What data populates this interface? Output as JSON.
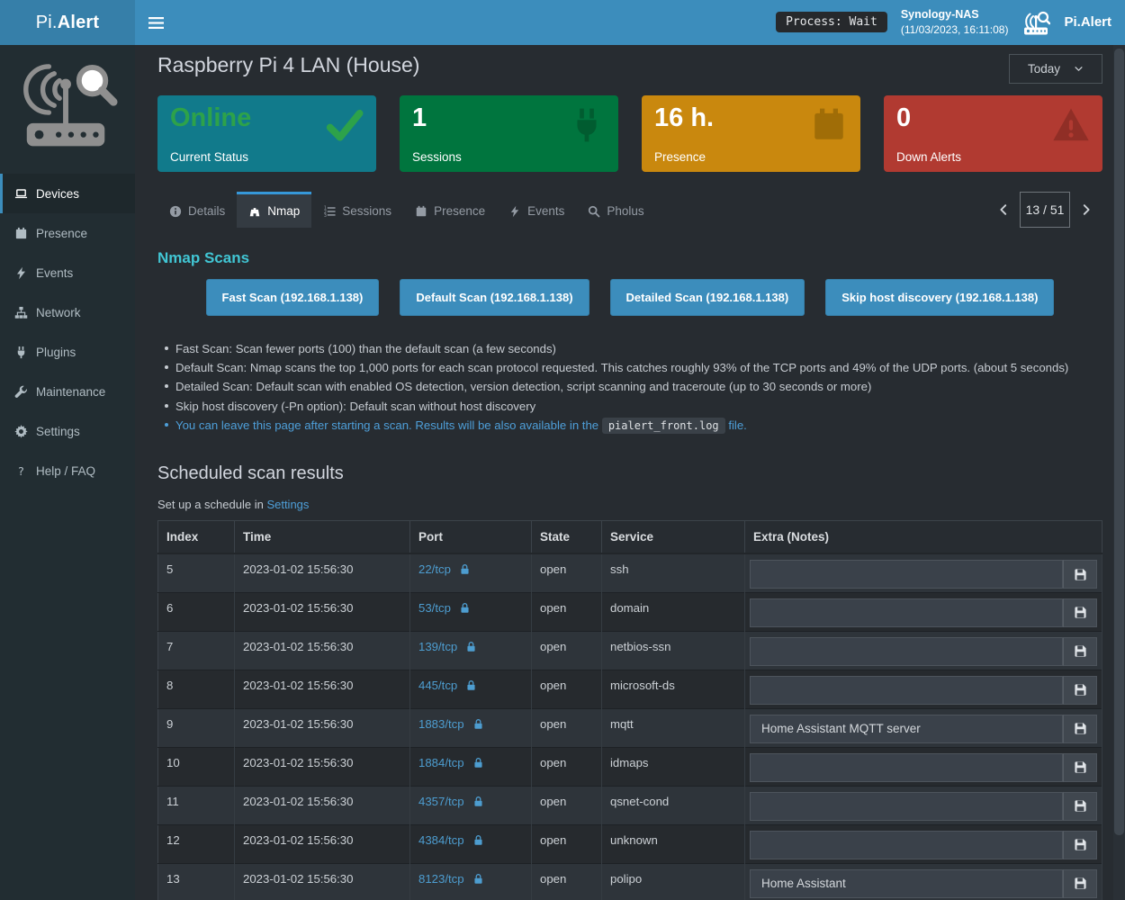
{
  "colors": {
    "navbar": "#3c8dbc",
    "link": "#4e9fd9",
    "port_link": "#4d9dd0",
    "nmap_heading": "#41c6d4"
  },
  "navbar": {
    "brand_prefix": "Pi.",
    "brand_bold": "Alert",
    "process_status": "Process: Wait",
    "host_name": "Synology-NAS",
    "host_timestamp": "(11/03/2023, 16:11:08)",
    "app_name": "Pi.Alert"
  },
  "sidebar": {
    "items": [
      {
        "label": "Devices",
        "icon": "laptop",
        "active": true
      },
      {
        "label": "Presence",
        "icon": "calendar"
      },
      {
        "label": "Events",
        "icon": "bolt"
      },
      {
        "label": "Network",
        "icon": "sitemap"
      },
      {
        "label": "Plugins",
        "icon": "plug"
      },
      {
        "label": "Maintenance",
        "icon": "wrench"
      },
      {
        "label": "Settings",
        "icon": "gear"
      },
      {
        "label": "Help / FAQ",
        "icon": "question"
      }
    ]
  },
  "header": {
    "title": "Raspberry Pi 4 LAN (House)",
    "period": "Today"
  },
  "summary_cards": [
    {
      "value": "Online",
      "label": "Current Status",
      "bg": "#117a8b",
      "value_color": "#2da24a",
      "icon": "check",
      "icon_color": "#2da24a"
    },
    {
      "value": "1",
      "label": "Sessions",
      "bg": "#00753e",
      "value_color": "#ffffff",
      "icon": "plug",
      "icon_color": "#015c30"
    },
    {
      "value": "16 h.",
      "label": "Presence",
      "bg": "#c9880e",
      "value_color": "#ffffff",
      "icon": "calendar",
      "icon_color": "#a06d07"
    },
    {
      "value": "0",
      "label": "Down Alerts",
      "bg": "#b13a31",
      "value_color": "#ffffff",
      "icon": "warning",
      "icon_color": "#902e26"
    }
  ],
  "tabs": [
    {
      "label": "Details",
      "icon": "info-circle"
    },
    {
      "label": "Nmap",
      "icon": "binoculars",
      "active": true
    },
    {
      "label": "Sessions",
      "icon": "list-ol"
    },
    {
      "label": "Presence",
      "icon": "calendar"
    },
    {
      "label": "Events",
      "icon": "bolt"
    },
    {
      "label": "Pholus",
      "icon": "search"
    }
  ],
  "pagination": {
    "position": "13 / 51"
  },
  "nmap": {
    "section_title": "Nmap Scans",
    "scan_buttons": [
      "Fast Scan (192.168.1.138)",
      "Default Scan (192.168.1.138)",
      "Detailed Scan (192.168.1.138)",
      "Skip host discovery (192.168.1.138)"
    ],
    "notes": [
      "Fast Scan: Scan fewer ports (100) than the default scan (a few seconds)",
      "Default Scan: Nmap scans the top 1,000 ports for each scan protocol requested. This catches roughly 93% of the TCP ports and 49% of the UDP ports. (about 5 seconds)",
      "Detailed Scan: Default scan with enabled OS detection, version detection, script scanning and traceroute (up to 30 seconds or more)",
      "Skip host discovery (-Pn option): Default scan without host discovery"
    ],
    "info_note": {
      "before": "You can leave this page after starting a scan. Results will be also available in the",
      "code": "pialert_front.log",
      "after": "file."
    }
  },
  "scheduled": {
    "title": "Scheduled scan results",
    "subtitle_prefix": "Set up a schedule in",
    "subtitle_link": "Settings",
    "table": {
      "headers": [
        "Index",
        "Time",
        "Port",
        "State",
        "Service",
        "Extra (Notes)"
      ],
      "rows": [
        {
          "index": "5",
          "time": "2023-01-02 15:56:30",
          "port": "22/tcp",
          "state": "open",
          "service": "ssh",
          "note": ""
        },
        {
          "index": "6",
          "time": "2023-01-02 15:56:30",
          "port": "53/tcp",
          "state": "open",
          "service": "domain",
          "note": ""
        },
        {
          "index": "7",
          "time": "2023-01-02 15:56:30",
          "port": "139/tcp",
          "state": "open",
          "service": "netbios-ssn",
          "note": ""
        },
        {
          "index": "8",
          "time": "2023-01-02 15:56:30",
          "port": "445/tcp",
          "state": "open",
          "service": "microsoft-ds",
          "note": ""
        },
        {
          "index": "9",
          "time": "2023-01-02 15:56:30",
          "port": "1883/tcp",
          "state": "open",
          "service": "mqtt",
          "note": "Home Assistant MQTT server"
        },
        {
          "index": "10",
          "time": "2023-01-02 15:56:30",
          "port": "1884/tcp",
          "state": "open",
          "service": "idmaps",
          "note": ""
        },
        {
          "index": "11",
          "time": "2023-01-02 15:56:30",
          "port": "4357/tcp",
          "state": "open",
          "service": "qsnet-cond",
          "note": ""
        },
        {
          "index": "12",
          "time": "2023-01-02 15:56:30",
          "port": "4384/tcp",
          "state": "open",
          "service": "unknown",
          "note": ""
        },
        {
          "index": "13",
          "time": "2023-01-02 15:56:30",
          "port": "8123/tcp",
          "state": "open",
          "service": "polipo",
          "note": "Home Assistant"
        }
      ]
    }
  }
}
